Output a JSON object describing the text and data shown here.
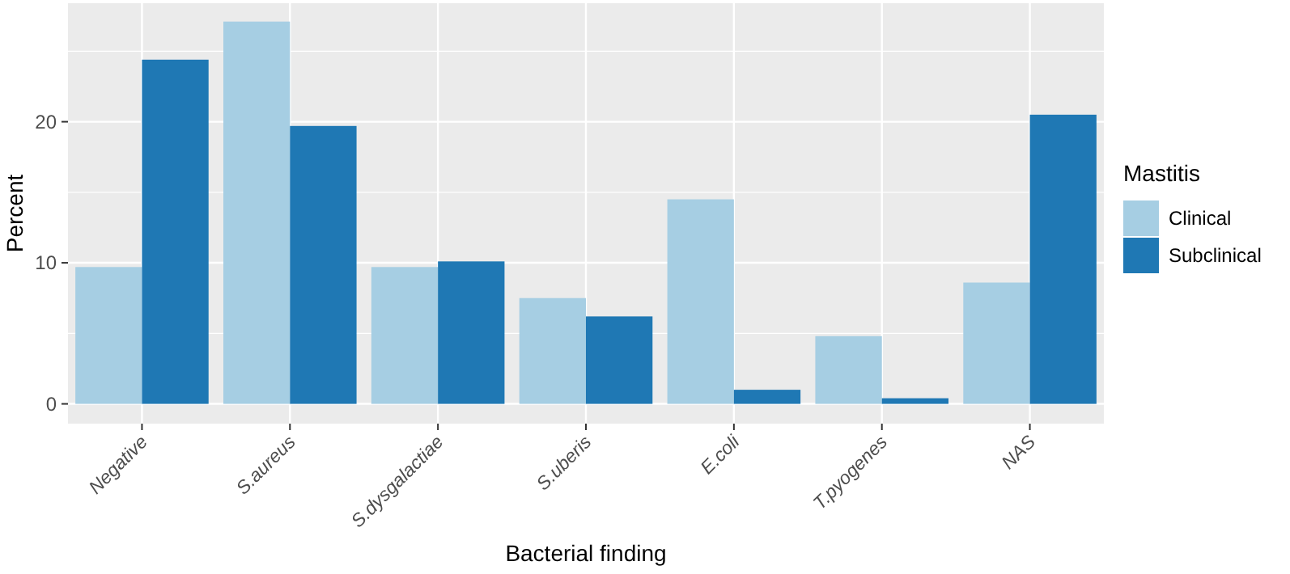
{
  "chart_data": {
    "type": "bar",
    "xlabel": "Bacterial finding",
    "ylabel": "Percent",
    "legend_title": "Mastitis",
    "legend": "right",
    "grid": true,
    "categories": [
      "Negative",
      "S.aureus",
      "S.dysgalactiae",
      "S.uberis",
      "E.coli",
      "T.pyogenes",
      "NAS"
    ],
    "series": [
      {
        "name": "Clinical",
        "color": "#a6cee3",
        "values": [
          9.7,
          27.1,
          9.7,
          7.5,
          14.5,
          4.8,
          8.6
        ]
      },
      {
        "name": "Subclinical",
        "color": "#1f78b4",
        "values": [
          24.4,
          19.7,
          10.1,
          6.2,
          1.0,
          0.4,
          20.5
        ]
      }
    ],
    "ylim": [
      -1.4,
      28.4
    ],
    "yticks": [
      0,
      10,
      20
    ]
  }
}
